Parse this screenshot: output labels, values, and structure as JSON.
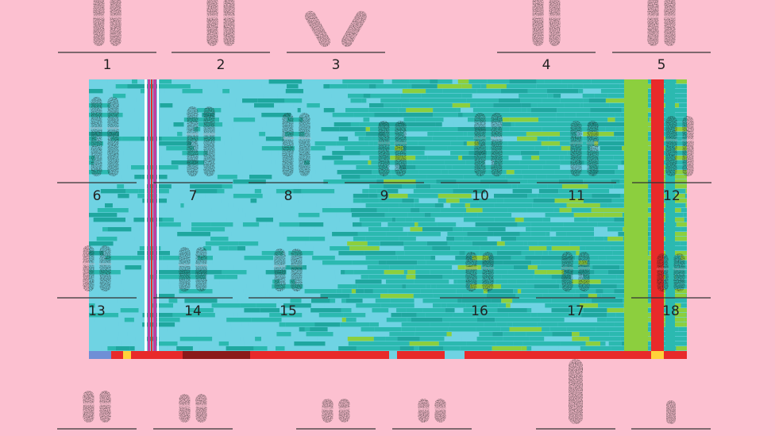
{
  "image": {
    "description_free": true,
    "background_color": "#fcc0d0",
    "heatmap_colors": [
      "#6fd3e3",
      "#2bb9b0",
      "#1fa79f",
      "#8ccf3e",
      "#e82a2a",
      "#8b1a1a",
      "#ffd23a",
      "#c03fa0",
      "#6f8fd6"
    ],
    "chromosome_color": "#1a1a1a"
  },
  "karyotype": {
    "top_row": [
      "1",
      "2",
      "3",
      "4",
      "5"
    ],
    "middle_row": [
      "6",
      "7",
      "8",
      "9",
      "10",
      "11",
      "12"
    ],
    "lower_row": [
      "13",
      "14",
      "15",
      "16",
      "17",
      "18"
    ]
  }
}
